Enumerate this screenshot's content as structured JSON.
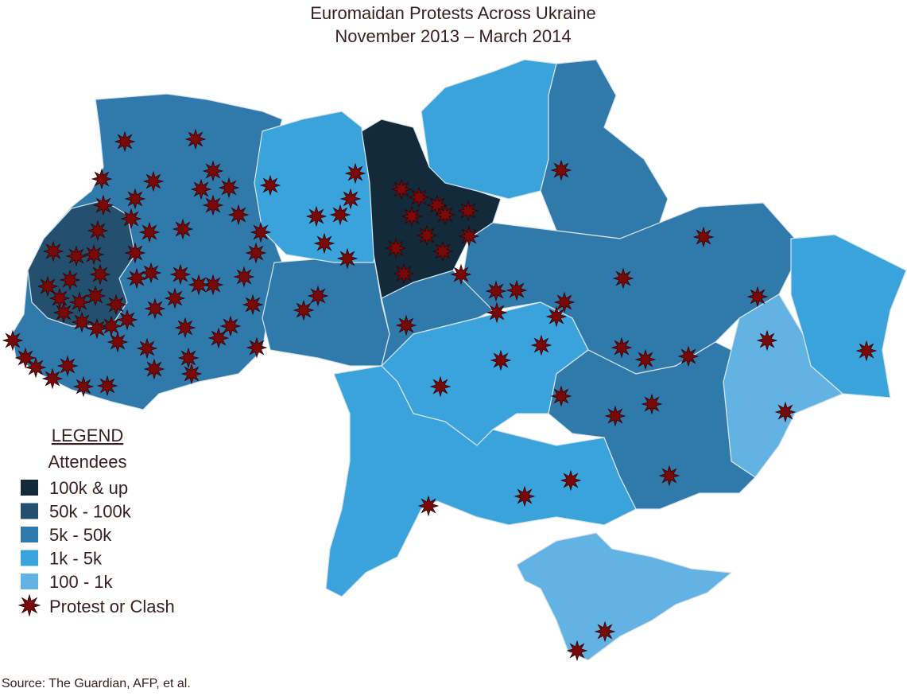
{
  "title": [
    "Euromaidan Protests Across Ukraine",
    "November 2013 – March 2014"
  ],
  "legend": {
    "heading": "LEGEND",
    "subtitle": "Attendees",
    "items": [
      {
        "label": "100k & up",
        "color": "#132a3a"
      },
      {
        "label": "50k - 100k",
        "color": "#22506e"
      },
      {
        "label": "5k - 50k",
        "color": "#2f7aaa"
      },
      {
        "label": "1k - 5k",
        "color": "#3ba3dc"
      },
      {
        "label": "100 - 1k",
        "color": "#63b2e4"
      }
    ],
    "marker": {
      "label": "Protest or Clash",
      "color": "#7a0a0a"
    }
  },
  "source": "Source: The Guardian, AFP, et al."
}
